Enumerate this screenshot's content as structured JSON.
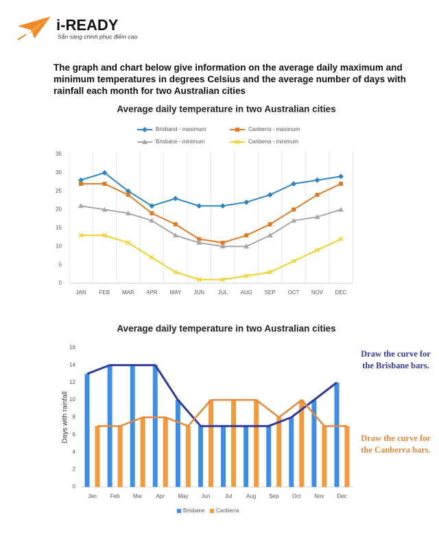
{
  "header": {
    "logo": "i-READY",
    "tagline": "Sẵn sàng chinh phục điểm cao"
  },
  "intro": "The graph and chart below give information on the average daily maximum and minimum temperatures in degrees Celsius and the average number of days with rainfall each month for two Australian cities",
  "chart_data": [
    {
      "type": "line",
      "title": "Average daily temperature in two Australian cities",
      "categories": [
        "JAN",
        "FEB",
        "MAR",
        "APR",
        "MAY",
        "JUN",
        "JUL",
        "AUG",
        "SEP",
        "OCT",
        "NOV",
        "DEC"
      ],
      "series": [
        {
          "name": "Brisband - maximum",
          "color": "#2e86c1",
          "marker": "diamond",
          "values": [
            28,
            30,
            25,
            21,
            23,
            21,
            21,
            22,
            24,
            27,
            28,
            29
          ]
        },
        {
          "name": "Canberra - maximum",
          "color": "#e07b24",
          "marker": "square",
          "values": [
            27,
            27,
            24,
            19,
            16,
            12,
            11,
            13,
            16,
            20,
            24,
            27
          ]
        },
        {
          "name": "Brisbane - minimum",
          "color": "#a6a6a6",
          "marker": "triangle",
          "values": [
            21,
            20,
            19,
            17,
            13,
            11,
            10,
            10,
            13,
            17,
            18,
            20
          ]
        },
        {
          "name": "Canberra - minimum",
          "color": "#f2d024",
          "marker": "x",
          "values": [
            13,
            13,
            11,
            7,
            3,
            1,
            1,
            2,
            3,
            6,
            9,
            12
          ]
        }
      ],
      "ylim": [
        0,
        35
      ],
      "yticks": [
        0,
        5,
        10,
        15,
        20,
        25,
        30,
        35
      ],
      "grid": true,
      "legend": "top"
    },
    {
      "type": "bar",
      "title": "Average daily temperature in two Australian cities",
      "ylabel": "Days with rainfall",
      "categories": [
        "Jan",
        "Feb",
        "Mar",
        "Apr",
        "May",
        "Jun",
        "Jul",
        "Aug",
        "Sep",
        "Oct",
        "Nov",
        "Dec"
      ],
      "series": [
        {
          "name": "Brisbane",
          "color": "#3d8ee6",
          "values": [
            13,
            14,
            14,
            14,
            10,
            7,
            7,
            7,
            7,
            8,
            10,
            12
          ]
        },
        {
          "name": "Canberra",
          "color": "#f29a3c",
          "values": [
            7,
            7,
            8,
            8,
            7,
            10,
            10,
            10,
            8,
            10,
            7,
            7
          ]
        }
      ],
      "ylim": [
        0,
        16
      ],
      "yticks": [
        0,
        2,
        4,
        6,
        8,
        10,
        12,
        14,
        16
      ],
      "grid": false,
      "legend": "bottom"
    }
  ],
  "annotations": [
    {
      "lines": [
        "Draw the curve for",
        "the Brisbane bars."
      ],
      "color": "#2f3a9c"
    },
    {
      "lines": [
        "Draw the curve for",
        "the Canberra bars."
      ],
      "color": "#e8883a"
    }
  ]
}
